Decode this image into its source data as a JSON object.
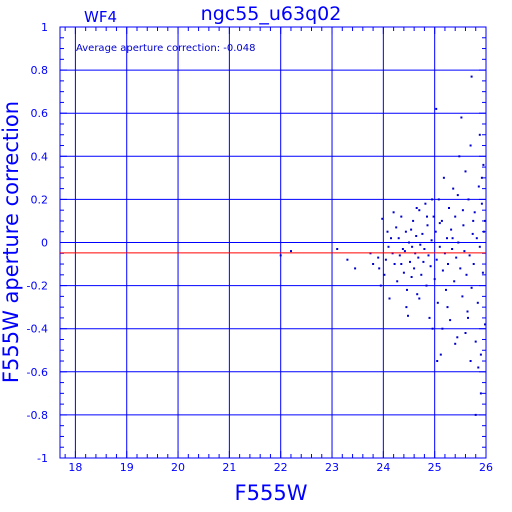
{
  "title": "ngc55_u63q02",
  "chip_label": "WF4",
  "annotation": "Average aperture correction: -0.048",
  "colors": {
    "axes": "#0000ff",
    "grid": "#0000ff",
    "points": "#0000cc",
    "average_line": "#ff0000",
    "background": "#ffffff"
  },
  "chart_data": {
    "type": "scatter",
    "title": "ngc55_u63q02",
    "xlabel": "F555W",
    "ylabel": "F555W aperture correction",
    "xlim": [
      17.7,
      26.0
    ],
    "ylim": [
      -1.0,
      1.0
    ],
    "xticks": [
      18,
      19,
      20,
      21,
      22,
      23,
      24,
      25,
      26
    ],
    "yticks": [
      -1,
      -0.8,
      -0.6,
      -0.4,
      -0.2,
      0,
      0.2,
      0.4,
      0.6,
      0.8,
      1
    ],
    "ytick_labels": [
      "-1",
      "-0.8",
      "-0.6",
      "-0.4",
      "-0.2",
      "0",
      "0.2",
      "0.4",
      "0.6",
      "0.8",
      "1"
    ],
    "grid": true,
    "average_line": -0.048,
    "points": [
      [
        22.0,
        -0.06
      ],
      [
        22.2,
        -0.04
      ],
      [
        23.1,
        -0.03
      ],
      [
        23.3,
        -0.08
      ],
      [
        23.45,
        -0.12
      ],
      [
        23.75,
        -0.05
      ],
      [
        23.8,
        -0.1
      ],
      [
        23.9,
        -0.07
      ],
      [
        23.92,
        -0.12
      ],
      [
        23.95,
        -0.2
      ],
      [
        23.98,
        0.11
      ],
      [
        24.02,
        -0.15
      ],
      [
        24.05,
        -0.08
      ],
      [
        24.08,
        0.05
      ],
      [
        24.1,
        -0.02
      ],
      [
        24.12,
        -0.26
      ],
      [
        24.15,
        0.02
      ],
      [
        24.18,
        -0.05
      ],
      [
        24.2,
        0.14
      ],
      [
        24.22,
        -0.1
      ],
      [
        24.25,
        0.07
      ],
      [
        24.27,
        -0.18
      ],
      [
        24.3,
        0.02
      ],
      [
        24.32,
        -0.06
      ],
      [
        24.35,
        0.12
      ],
      [
        24.38,
        -0.03
      ],
      [
        24.4,
        -0.14
      ],
      [
        24.42,
        -0.04
      ],
      [
        24.44,
        0.05
      ],
      [
        24.46,
        -0.22
      ],
      [
        24.48,
        -0.34
      ],
      [
        24.5,
        0.0
      ],
      [
        24.52,
        -0.09
      ],
      [
        24.54,
        0.06
      ],
      [
        24.56,
        -0.02
      ],
      [
        24.58,
        0.1
      ],
      [
        24.6,
        -0.12
      ],
      [
        24.62,
        -0.05
      ],
      [
        24.64,
        0.03
      ],
      [
        24.66,
        -0.24
      ],
      [
        24.68,
        -0.07
      ],
      [
        24.7,
        0.15
      ],
      [
        24.72,
        -0.01
      ],
      [
        24.74,
        -0.15
      ],
      [
        24.76,
        0.04
      ],
      [
        24.78,
        -0.09
      ],
      [
        24.8,
        -0.03
      ],
      [
        24.82,
        0.18
      ],
      [
        24.84,
        -0.2
      ],
      [
        24.86,
        0.08
      ],
      [
        24.88,
        -0.06
      ],
      [
        24.9,
        -0.35
      ],
      [
        24.92,
        -0.11
      ],
      [
        24.94,
        0.01
      ],
      [
        24.96,
        -0.4
      ],
      [
        24.98,
        0.12
      ],
      [
        25.0,
        -0.17
      ],
      [
        25.02,
        0.05
      ],
      [
        25.03,
        0.62
      ],
      [
        25.04,
        -0.08
      ],
      [
        25.06,
        -0.28
      ],
      [
        25.08,
        0.2
      ],
      [
        25.1,
        -0.02
      ],
      [
        25.12,
        -0.52
      ],
      [
        25.14,
        0.1
      ],
      [
        25.16,
        -0.13
      ],
      [
        25.18,
        0.3
      ],
      [
        25.2,
        -0.05
      ],
      [
        25.22,
        -0.22
      ],
      [
        25.24,
        0.02
      ],
      [
        25.26,
        -0.1
      ],
      [
        25.28,
        0.16
      ],
      [
        25.3,
        -0.36
      ],
      [
        25.32,
        0.06
      ],
      [
        25.34,
        -0.03
      ],
      [
        25.36,
        0.25
      ],
      [
        25.38,
        -0.18
      ],
      [
        25.4,
        0.12
      ],
      [
        25.42,
        -0.07
      ],
      [
        25.44,
        -0.44
      ],
      [
        25.46,
        0.0
      ],
      [
        25.48,
        0.4
      ],
      [
        25.5,
        -0.12
      ],
      [
        25.52,
        0.58
      ],
      [
        25.54,
        -0.25
      ],
      [
        25.56,
        0.08
      ],
      [
        25.58,
        -0.04
      ],
      [
        25.6,
        0.33
      ],
      [
        25.62,
        -0.15
      ],
      [
        25.64,
        -0.32
      ],
      [
        25.66,
        0.2
      ],
      [
        25.68,
        -0.06
      ],
      [
        25.7,
        0.45
      ],
      [
        25.72,
        -0.21
      ],
      [
        25.74,
        0.04
      ],
      [
        25.76,
        -0.1
      ],
      [
        25.78,
        0.14
      ],
      [
        25.8,
        -0.46
      ],
      [
        25.82,
        0.02
      ],
      [
        25.84,
        -0.28
      ],
      [
        25.86,
        0.26
      ],
      [
        25.88,
        -0.02
      ],
      [
        25.9,
        -0.52
      ],
      [
        25.92,
        0.18
      ],
      [
        25.94,
        -0.14
      ],
      [
        25.96,
        0.05
      ],
      [
        25.98,
        -0.38
      ],
      [
        25.72,
        0.77
      ],
      [
        25.85,
        -0.58
      ],
      [
        25.8,
        -0.8
      ],
      [
        25.9,
        -0.7
      ],
      [
        25.95,
        0.36
      ],
      [
        25.6,
        -0.42
      ],
      [
        25.45,
        0.22
      ],
      [
        25.25,
        -0.3
      ],
      [
        24.85,
        0.12
      ],
      [
        24.55,
        -0.16
      ],
      [
        24.35,
        -0.1
      ],
      [
        24.7,
        -0.26
      ],
      [
        25.1,
        0.09
      ],
      [
        25.35,
        0.02
      ],
      [
        25.55,
        0.15
      ],
      [
        25.75,
        0.1
      ],
      [
        25.92,
        0.3
      ],
      [
        25.65,
        -0.35
      ],
      [
        25.15,
        -0.4
      ],
      [
        24.95,
        0.2
      ],
      [
        24.65,
        0.16
      ],
      [
        24.45,
        -0.3
      ],
      [
        25.05,
        -0.55
      ],
      [
        25.4,
        -0.47
      ],
      [
        25.7,
        -0.55
      ],
      [
        25.88,
        0.5
      ],
      [
        25.98,
        0.1
      ]
    ]
  }
}
